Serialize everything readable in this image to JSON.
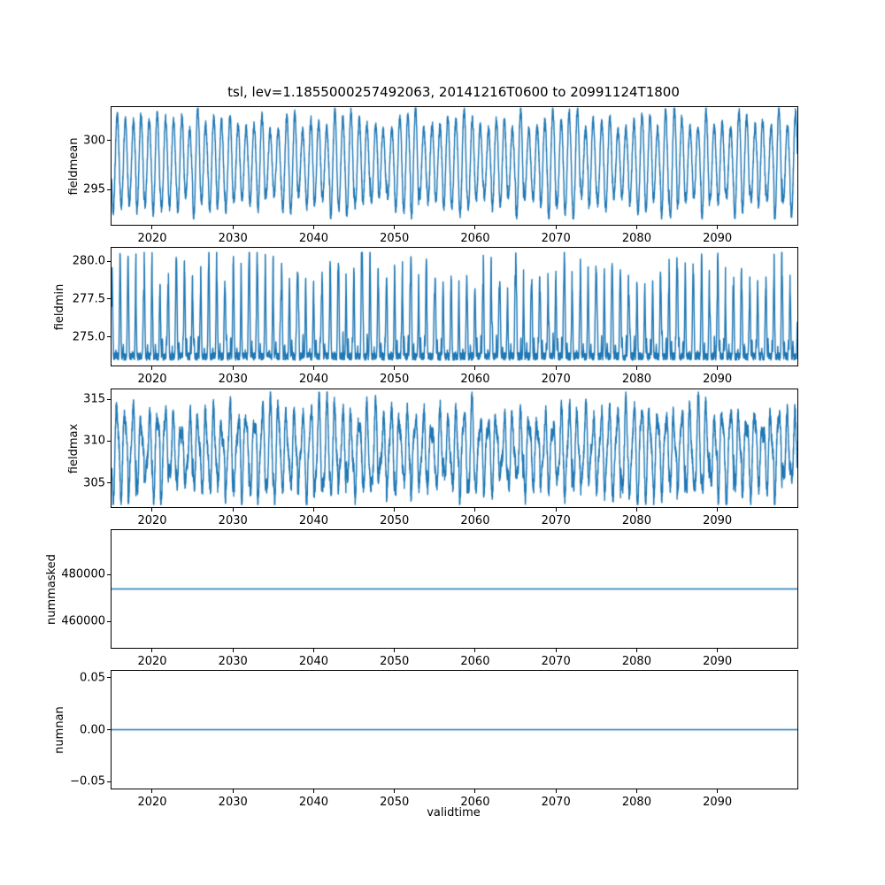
{
  "figure": {
    "title": "tsl, lev=1.1855000257492063, 20141216T0600 to 20991124T1800",
    "xlabel": "validtime",
    "line_color": "#1f77b4",
    "background_color": "#ffffff",
    "axes_color": "#000000"
  },
  "chart_data": [
    {
      "type": "line",
      "ylabel": "fieldmean",
      "x_range": [
        2014.96,
        2099.9
      ],
      "xticks": [
        2020,
        2030,
        2040,
        2050,
        2060,
        2070,
        2080,
        2090
      ],
      "xtick_labels": [
        "2020",
        "2030",
        "2040",
        "2050",
        "2060",
        "2070",
        "2080",
        "2090"
      ],
      "ylim": [
        291.4,
        303.4
      ],
      "yticks": [
        295,
        300
      ],
      "ytick_labels": [
        "295",
        "300"
      ],
      "grid": false,
      "series": [
        {
          "name": "fieldmean",
          "pattern": "seasonal",
          "base": 297.7,
          "amplitude": 4.5,
          "noise": 0.5,
          "min": 292.0,
          "max": 303.3
        }
      ]
    },
    {
      "type": "line",
      "ylabel": "fieldmin",
      "x_range": [
        2014.96,
        2099.9
      ],
      "xticks": [
        2020,
        2030,
        2040,
        2050,
        2060,
        2070,
        2080,
        2090
      ],
      "xtick_labels": [
        "2020",
        "2030",
        "2040",
        "2050",
        "2060",
        "2070",
        "2080",
        "2090"
      ],
      "ylim": [
        273.1,
        280.9
      ],
      "yticks": [
        275.0,
        277.5,
        280.0
      ],
      "ytick_labels": [
        "275.0",
        "277.5",
        "280.0"
      ],
      "grid": false,
      "series": [
        {
          "name": "fieldmin",
          "pattern": "spiky",
          "base": 273.7,
          "amplitude": 5.6,
          "noise": 0.25,
          "min": 273.2,
          "max": 280.6
        }
      ]
    },
    {
      "type": "line",
      "ylabel": "fieldmax",
      "x_range": [
        2014.96,
        2099.9
      ],
      "xticks": [
        2020,
        2030,
        2040,
        2050,
        2060,
        2070,
        2080,
        2090
      ],
      "xtick_labels": [
        "2020",
        "2030",
        "2040",
        "2050",
        "2060",
        "2070",
        "2080",
        "2090"
      ],
      "ylim": [
        302.1,
        316.2
      ],
      "yticks": [
        305,
        310,
        315
      ],
      "ytick_labels": [
        "305",
        "310",
        "315"
      ],
      "grid": false,
      "series": [
        {
          "name": "fieldmax",
          "pattern": "noisy-seasonal",
          "base": 308.8,
          "amplitude": 4.3,
          "noise": 0.9,
          "min": 302.4,
          "max": 315.9
        }
      ]
    },
    {
      "type": "line",
      "ylabel": "nummasked",
      "x_range": [
        2014.96,
        2099.9
      ],
      "xticks": [
        2020,
        2030,
        2040,
        2050,
        2060,
        2070,
        2080,
        2090
      ],
      "xtick_labels": [
        "2020",
        "2030",
        "2040",
        "2050",
        "2060",
        "2070",
        "2080",
        "2090"
      ],
      "ylim": [
        448800,
        498800
      ],
      "yticks": [
        460000,
        480000
      ],
      "ytick_labels": [
        "460000",
        "480000"
      ],
      "grid": false,
      "series": [
        {
          "name": "nummasked",
          "pattern": "constant",
          "value": 473800
        }
      ]
    },
    {
      "type": "line",
      "ylabel": "numnan",
      "x_range": [
        2014.96,
        2099.9
      ],
      "xticks": [
        2020,
        2030,
        2040,
        2050,
        2060,
        2070,
        2080,
        2090
      ],
      "xtick_labels": [
        "2020",
        "2030",
        "2040",
        "2050",
        "2060",
        "2070",
        "2080",
        "2090"
      ],
      "ylim": [
        -0.0565,
        0.0565
      ],
      "yticks": [
        -0.05,
        0.0,
        0.05
      ],
      "ytick_labels": [
        "−0.05",
        "0.00",
        "0.05"
      ],
      "grid": false,
      "series": [
        {
          "name": "numnan",
          "pattern": "constant",
          "value": 0.0
        }
      ]
    }
  ]
}
